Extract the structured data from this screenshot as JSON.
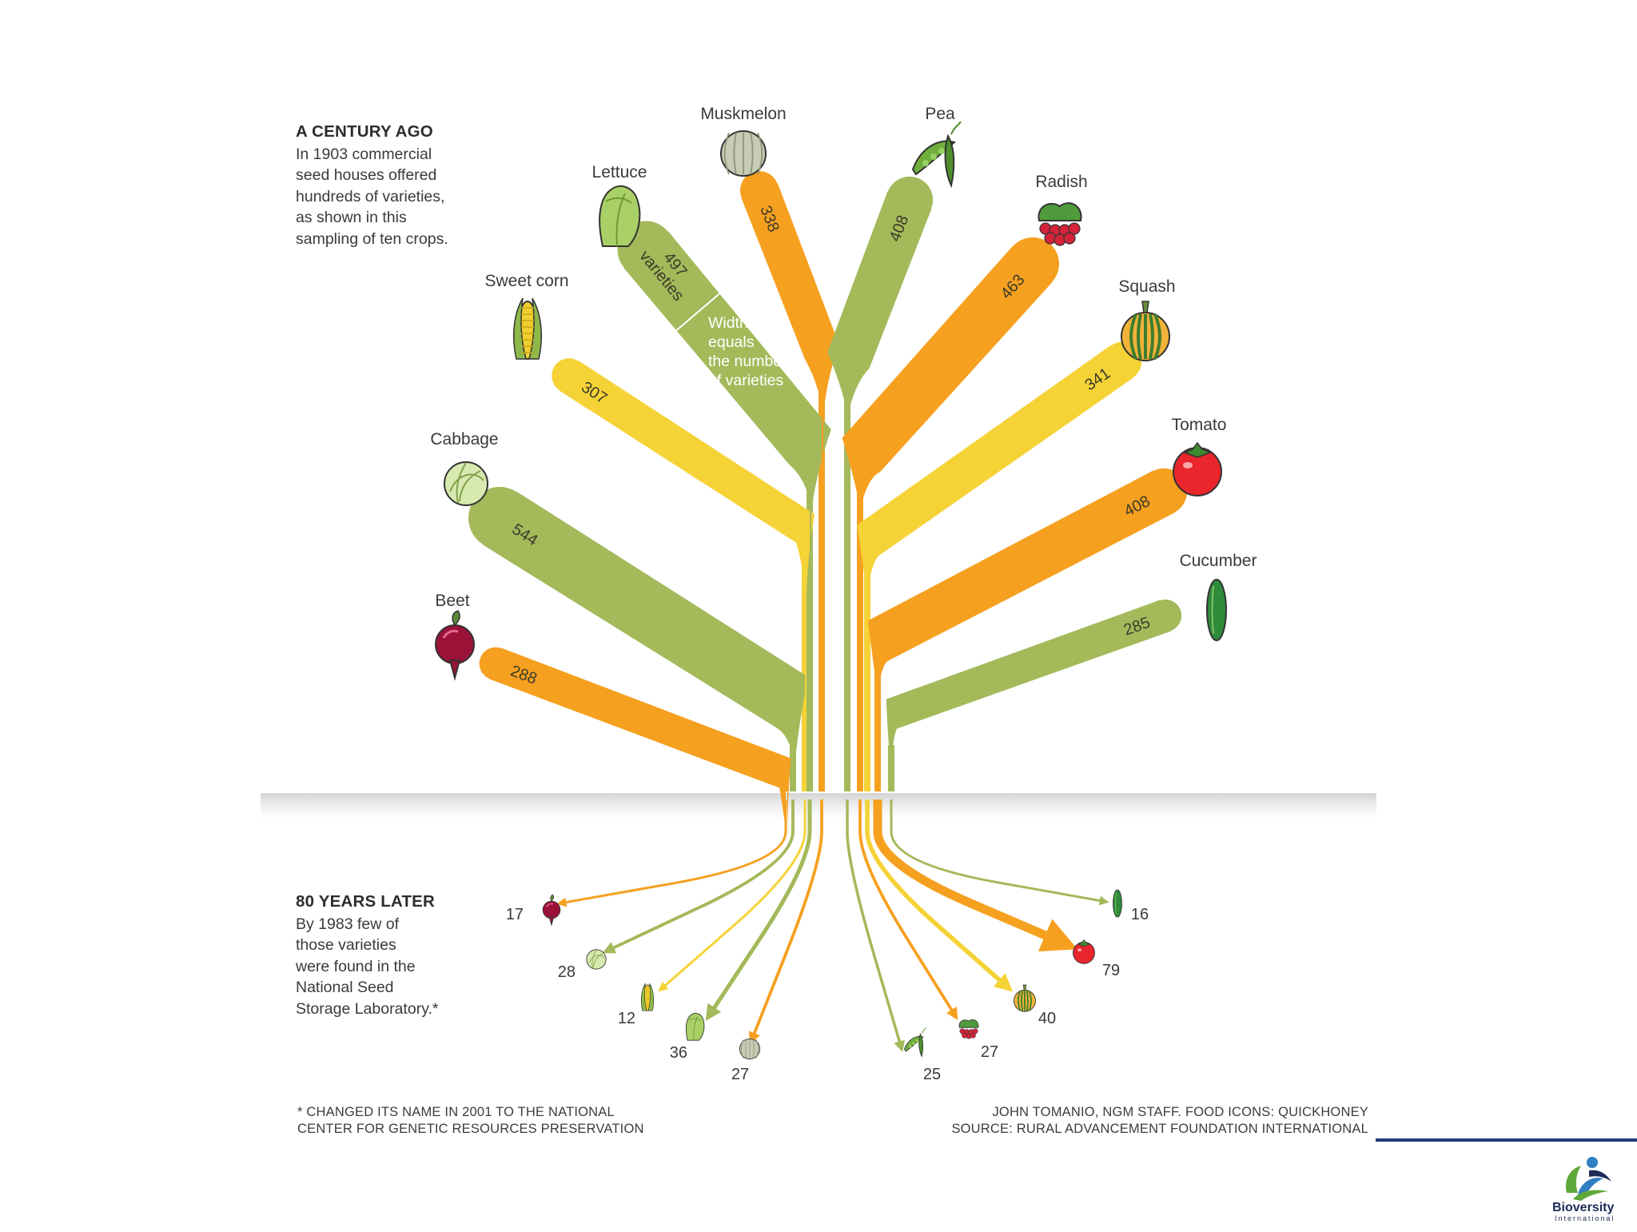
{
  "intro": {
    "heading": "A CENTURY AGO",
    "lines": [
      "In 1903 commercial",
      "seed houses offered",
      "hundreds of varieties,",
      "as shown in this",
      "sampling of ten crops."
    ]
  },
  "later": {
    "heading": "80 YEARS LATER",
    "lines": [
      "By 1983 few of",
      "those varieties",
      "were found in the",
      "National Seed",
      "Storage Laboratory.*"
    ]
  },
  "width_note": {
    "first_value": "497",
    "first_unit": "varieties",
    "lines": [
      "Width",
      "equals",
      "the number",
      "of varieties"
    ]
  },
  "footer": {
    "left": [
      "* CHANGED ITS NAME IN 2001 TO THE NATIONAL",
      "CENTER FOR GENETIC RESOURCES PRESERVATION"
    ],
    "right": [
      "JOHN TOMANIO, NGM STAFF. FOOD ICONS: QUICKHONEY",
      "SOURCE: RURAL ADVANCEMENT FOUNDATION INTERNATIONAL"
    ]
  },
  "logo": {
    "name": "Bioversity",
    "sub": "International"
  },
  "colors": {
    "orange": "#f6a020",
    "green": "#a4b95a",
    "yellow": "#f5d236"
  },
  "chart_data": {
    "type": "sankey-tree",
    "xlabel": "",
    "ylabel": "",
    "series": [
      {
        "name": "1903",
        "values": [
          288,
          544,
          307,
          497,
          338,
          408,
          463,
          341,
          408,
          285
        ]
      },
      {
        "name": "1983",
        "values": [
          17,
          28,
          12,
          36,
          27,
          25,
          27,
          40,
          79,
          16
        ]
      }
    ],
    "crops": [
      {
        "name": "Beet",
        "varieties_1903": 288,
        "varieties_1983": 17,
        "color": "#f6a020",
        "icon": "beet-icon",
        "side": "left"
      },
      {
        "name": "Cabbage",
        "varieties_1903": 544,
        "varieties_1983": 28,
        "color": "#a4b95a",
        "icon": "cabbage-icon",
        "side": "left"
      },
      {
        "name": "Sweet corn",
        "varieties_1903": 307,
        "varieties_1983": 12,
        "color": "#f5d236",
        "icon": "corn-icon",
        "side": "left"
      },
      {
        "name": "Lettuce",
        "varieties_1903": 497,
        "varieties_1983": 36,
        "color": "#a4b95a",
        "icon": "lettuce-icon",
        "side": "left"
      },
      {
        "name": "Muskmelon",
        "varieties_1903": 338,
        "varieties_1983": 27,
        "color": "#f6a020",
        "icon": "muskmelon-icon",
        "side": "left"
      },
      {
        "name": "Pea",
        "varieties_1903": 408,
        "varieties_1983": 25,
        "color": "#a4b95a",
        "icon": "pea-icon",
        "side": "right"
      },
      {
        "name": "Radish",
        "varieties_1903": 463,
        "varieties_1983": 27,
        "color": "#f6a020",
        "icon": "radish-icon",
        "side": "right"
      },
      {
        "name": "Squash",
        "varieties_1903": 341,
        "varieties_1983": 40,
        "color": "#f5d236",
        "icon": "squash-icon",
        "side": "right"
      },
      {
        "name": "Tomato",
        "varieties_1903": 408,
        "varieties_1983": 79,
        "color": "#f6a020",
        "icon": "tomato-icon",
        "side": "right"
      },
      {
        "name": "Cucumber",
        "varieties_1903": 285,
        "varieties_1983": 16,
        "color": "#a4b95a",
        "icon": "cucumber-icon",
        "side": "right"
      }
    ]
  }
}
